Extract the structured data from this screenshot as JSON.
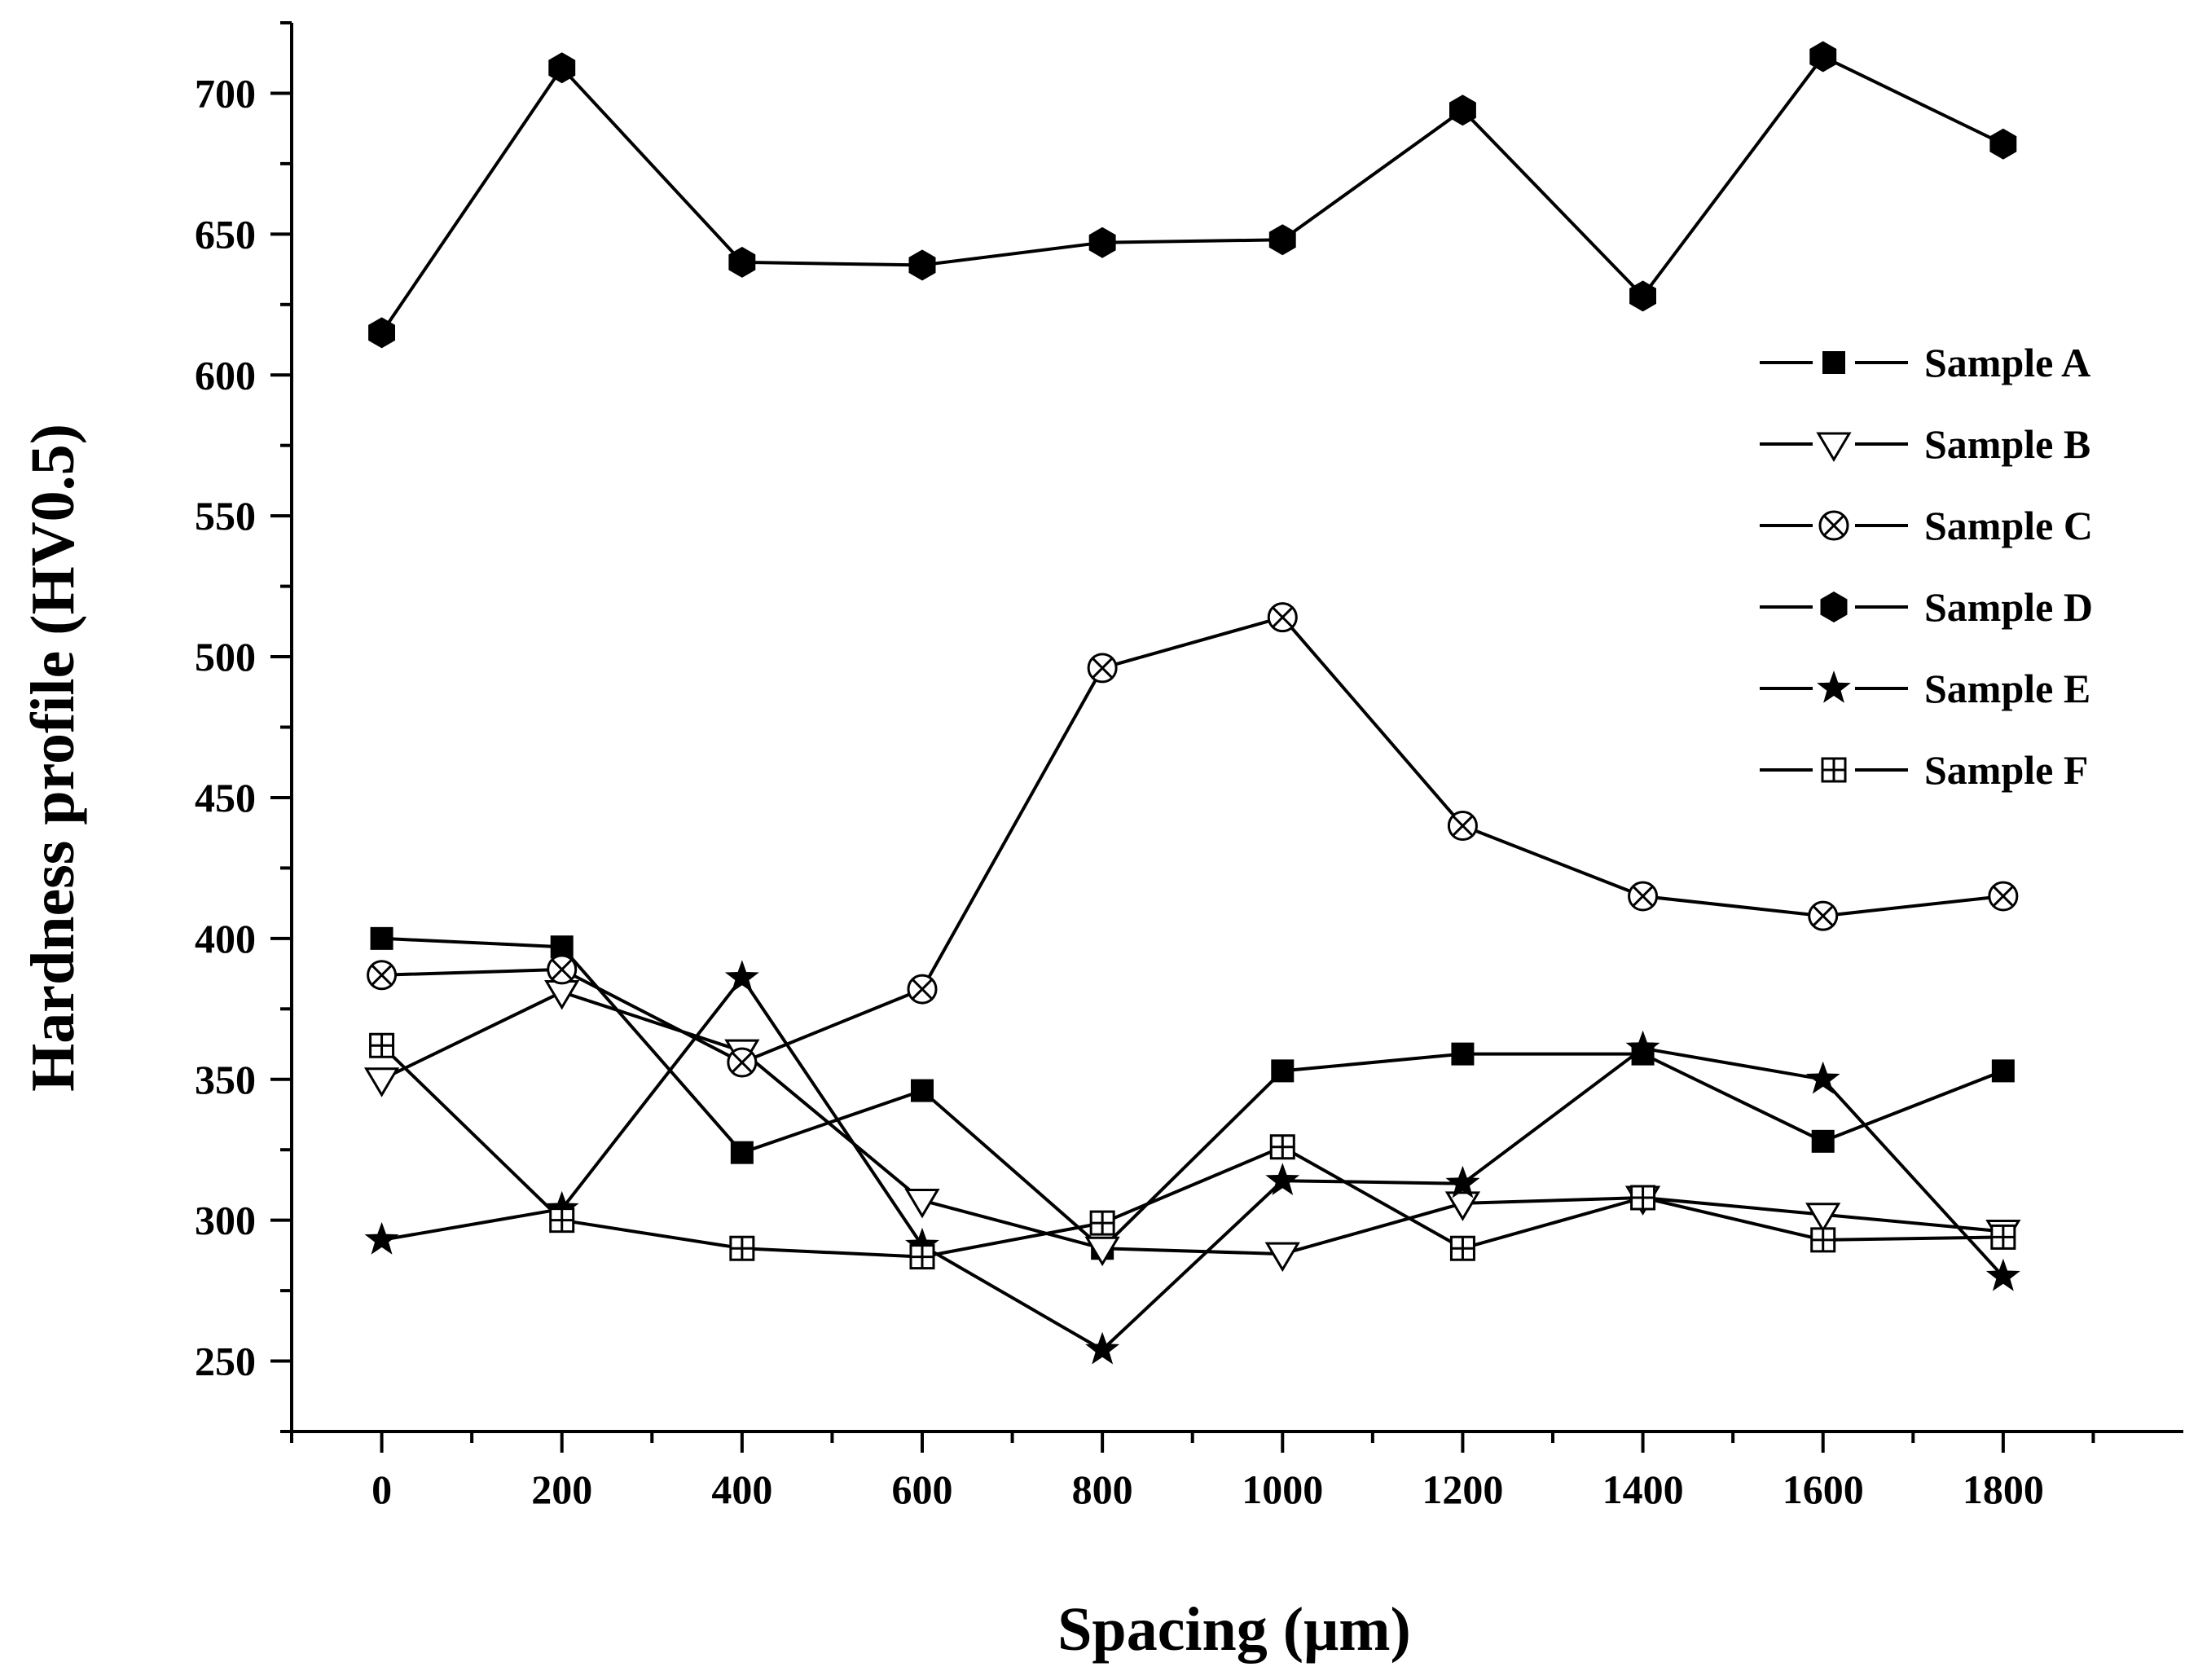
{
  "chart_data": {
    "type": "line",
    "xlabel": "Spacing (μm)",
    "ylabel": "Hardness profile (HV0.5)",
    "xlim": [
      -100,
      2000
    ],
    "ylim": [
      225,
      725
    ],
    "x_ticks": [
      0,
      200,
      400,
      600,
      800,
      1000,
      1200,
      1400,
      1600,
      1800
    ],
    "x_tick_labels": [
      "0",
      "200",
      "400",
      "600",
      "800",
      "1000",
      "1200",
      "1400",
      "1600",
      "1800"
    ],
    "y_ticks": [
      250,
      300,
      350,
      400,
      450,
      500,
      550,
      600,
      650,
      700
    ],
    "y_tick_labels": [
      "250",
      "300",
      "350",
      "400",
      "450",
      "500",
      "550",
      "600",
      "650",
      "700"
    ],
    "grid": false,
    "legend_position": "right",
    "x": [
      0,
      200,
      400,
      600,
      800,
      1000,
      1200,
      1400,
      1600,
      1800
    ],
    "series": [
      {
        "name": "Sample A",
        "marker": "filled-square",
        "values": [
          400,
          397,
          324,
          346,
          290,
          353,
          359,
          359,
          328,
          353
        ]
      },
      {
        "name": "Sample B",
        "marker": "open-triangle-down",
        "values": [
          350,
          381,
          360,
          307,
          290,
          288,
          306,
          308,
          302,
          296
        ]
      },
      {
        "name": "Sample C",
        "marker": "circle-x",
        "values": [
          387,
          389,
          356,
          382,
          496,
          514,
          440,
          415,
          408,
          415
        ]
      },
      {
        "name": "Sample D",
        "marker": "filled-hexagon",
        "values": [
          615,
          709,
          640,
          639,
          647,
          648,
          694,
          628,
          713,
          682
        ]
      },
      {
        "name": "Sample E",
        "marker": "filled-star",
        "values": [
          293,
          304,
          386,
          291,
          254,
          314,
          313,
          361,
          350,
          280
        ]
      },
      {
        "name": "Sample F",
        "marker": "square-plus",
        "values": [
          362,
          300,
          290,
          287,
          299,
          326,
          290,
          308,
          293,
          294
        ]
      }
    ]
  }
}
